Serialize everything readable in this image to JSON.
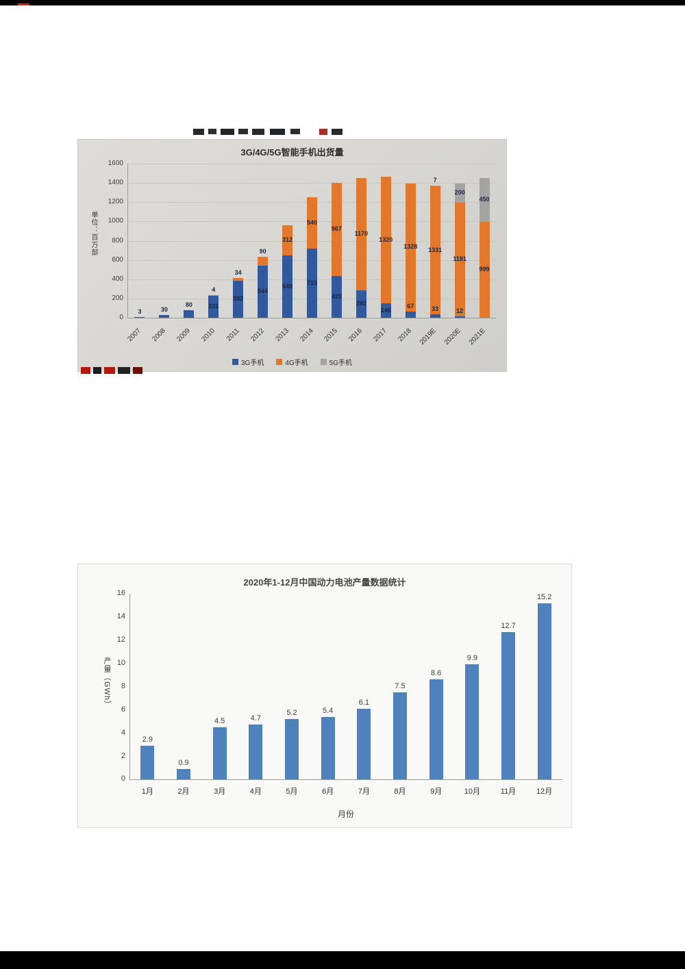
{
  "document": {
    "background": "#000000",
    "page_background": "#ffffff"
  },
  "chart_data": [
    {
      "type": "bar",
      "stacked": true,
      "title": "3G/4G/5G智能手机出货量",
      "ylabel": "单位：百万部",
      "xlabel": "",
      "categories": [
        "2007",
        "2008",
        "2009",
        "2010",
        "2011",
        "2012",
        "2013",
        "2014",
        "2015",
        "2016",
        "2017",
        "2018",
        "2019E",
        "2020E",
        "2021E"
      ],
      "series": [
        {
          "name": "3G手机",
          "color": "#31599b",
          "values": [
            3,
            30,
            80,
            231,
            382,
            544,
            649,
            715,
            433,
            282,
            146,
            67,
            33,
            12,
            0
          ]
        },
        {
          "name": "4G手机",
          "color": "#e2782c",
          "values": [
            0,
            0,
            0,
            4,
            34,
            90,
            312,
            540,
            967,
            1170,
            1320,
            1328,
            1331,
            1181,
            999
          ]
        },
        {
          "name": "5G手机",
          "color": "#a3a3a3",
          "values": [
            0,
            0,
            0,
            0,
            0,
            0,
            0,
            0,
            0,
            0,
            0,
            0,
            7,
            200,
            450
          ]
        }
      ],
      "ylim": [
        0,
        1600
      ],
      "ytick_step": 200,
      "grid": true,
      "legend_position": "bottom"
    },
    {
      "type": "bar",
      "stacked": false,
      "title": "2020年1-12月中国动力电池产量数据统计",
      "ylabel": "产量（GWh）",
      "xlabel": "月份",
      "categories": [
        "1月",
        "2月",
        "3月",
        "4月",
        "5月",
        "6月",
        "7月",
        "8月",
        "9月",
        "10月",
        "11月",
        "12月"
      ],
      "values": [
        2.9,
        0.9,
        4.5,
        4.7,
        5.2,
        5.4,
        6.1,
        7.5,
        8.6,
        9.9,
        12.7,
        15.2
      ],
      "bar_color": "#4f81bd",
      "ylim": [
        0,
        16
      ],
      "ytick_step": 2,
      "grid": false,
      "legend_position": "none"
    }
  ]
}
